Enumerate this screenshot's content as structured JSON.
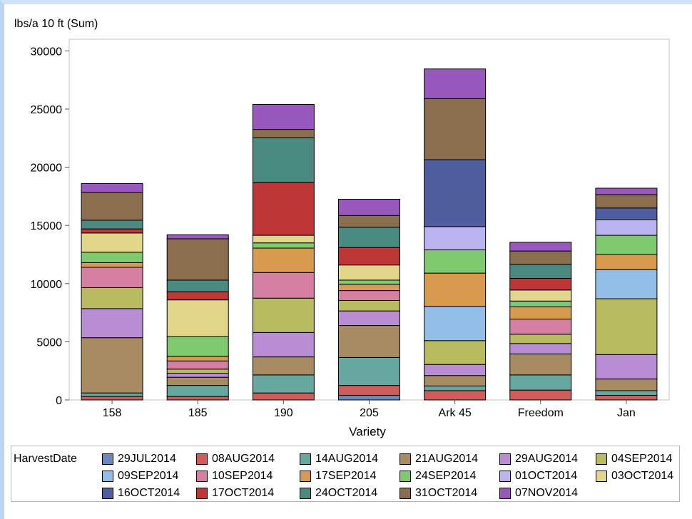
{
  "chart_data": {
    "type": "bar",
    "stacked": true,
    "title": "",
    "ylabel": "lbs/a 10 ft (Sum)",
    "xlabel": "Variety",
    "ylim": [
      0,
      31500
    ],
    "yticks": [
      0,
      5000,
      10000,
      15000,
      20000,
      25000,
      30000
    ],
    "grid": false,
    "legend_title": "HarvestDate",
    "legend_position": "bottom",
    "categories": [
      "158",
      "185",
      "190",
      "205",
      "Ark 45",
      "Freedom",
      "Jan"
    ],
    "series": [
      {
        "name": "29JUL2014",
        "color": "#6d88b8",
        "values": [
          0,
          0,
          0,
          400,
          0,
          0,
          0
        ]
      },
      {
        "name": "08AUG2014",
        "color": "#d05b5b",
        "values": [
          300,
          300,
          600,
          850,
          800,
          850,
          400
        ]
      },
      {
        "name": "14AUG2014",
        "color": "#66a8a0",
        "values": [
          300,
          950,
          1550,
          2400,
          400,
          1300,
          400
        ]
      },
      {
        "name": "21AUG2014",
        "color": "#a88a63",
        "values": [
          4750,
          700,
          1550,
          2750,
          900,
          1800,
          1000
        ]
      },
      {
        "name": "29AUG2014",
        "color": "#b98dd4",
        "values": [
          2500,
          350,
          2100,
          1250,
          950,
          900,
          2100
        ]
      },
      {
        "name": "04SEP2014",
        "color": "#b8bb60",
        "values": [
          1800,
          350,
          2950,
          900,
          2050,
          800,
          4800
        ]
      },
      {
        "name": "09SEP2014",
        "color": "#93bfe6",
        "values": [
          0,
          0,
          0,
          0,
          2950,
          0,
          2500
        ]
      },
      {
        "name": "10SEP2014",
        "color": "#d580a2",
        "values": [
          1750,
          700,
          2200,
          850,
          0,
          1300,
          0
        ]
      },
      {
        "name": "17SEP2014",
        "color": "#d89a4e",
        "values": [
          400,
          400,
          2100,
          550,
          2850,
          1050,
          1300
        ]
      },
      {
        "name": "24SEP2014",
        "color": "#7fc96f",
        "values": [
          900,
          1700,
          450,
          350,
          2000,
          500,
          1650
        ]
      },
      {
        "name": "01OCT2014",
        "color": "#b9b3ef",
        "values": [
          0,
          0,
          0,
          0,
          2000,
          0,
          1350
        ]
      },
      {
        "name": "03OCT2014",
        "color": "#e2d68a",
        "values": [
          1650,
          3150,
          650,
          1300,
          0,
          950,
          0
        ]
      },
      {
        "name": "16OCT2014",
        "color": "#4f5e9e",
        "values": [
          0,
          0,
          0,
          0,
          5750,
          0,
          1000
        ]
      },
      {
        "name": "17OCT2014",
        "color": "#bf3636",
        "values": [
          350,
          700,
          4550,
          1500,
          0,
          1000,
          0
        ]
      },
      {
        "name": "24OCT2014",
        "color": "#4a8a80",
        "values": [
          750,
          1000,
          3850,
          1750,
          0,
          1200,
          0
        ]
      },
      {
        "name": "31OCT2014",
        "color": "#8a6e4d",
        "values": [
          2400,
          3550,
          700,
          1000,
          5250,
          1150,
          1150
        ]
      },
      {
        "name": "07NOV2014",
        "color": "#9958bd",
        "values": [
          750,
          350,
          2150,
          1400,
          2550,
          750,
          550
        ]
      }
    ]
  }
}
